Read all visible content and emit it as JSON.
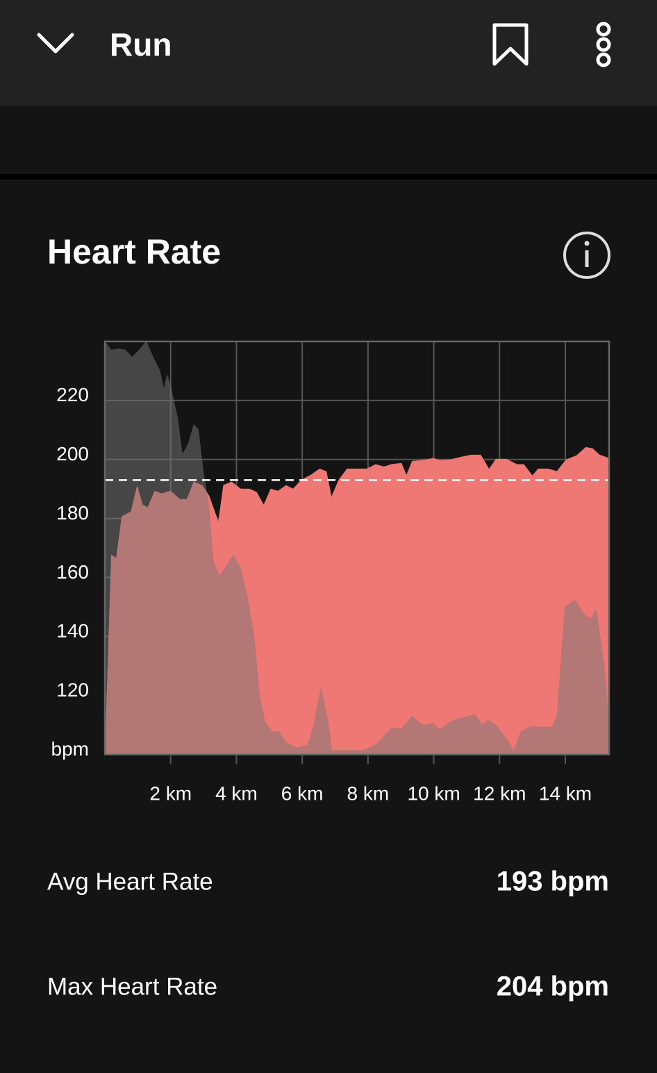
{
  "header": {
    "title": "Run"
  },
  "chart_data": {
    "type": "area",
    "title": "Heart Rate",
    "series": [
      {
        "color": "#ef7774",
        "x": [
          0,
          0.19,
          0.34,
          0.51,
          0.79,
          0.98,
          1.15,
          1.3,
          1.51,
          1.72,
          2.0,
          2.28,
          2.49,
          2.7,
          2.96,
          3.17,
          3.45,
          3.6,
          3.85,
          4.13,
          4.4,
          4.62,
          4.83,
          5.04,
          5.26,
          5.51,
          5.72,
          5.98,
          6.26,
          6.53,
          6.74,
          6.89,
          7.11,
          7.36,
          7.64,
          7.96,
          8.23,
          8.49,
          8.7,
          9.02,
          9.17,
          9.34,
          9.66,
          9.98,
          10.19,
          10.51,
          10.83,
          11.15,
          11.43,
          11.68,
          11.89,
          12.21,
          12.53,
          12.74,
          13.0,
          13.17,
          13.49,
          13.74,
          14.02,
          14.34,
          14.62,
          14.83,
          15.04,
          15.28,
          15.33
        ],
        "values": [
          101,
          167.8,
          166.6,
          180.7,
          182.4,
          191.3,
          184.7,
          183.8,
          189.4,
          188.5,
          189.4,
          186.6,
          186.6,
          192.5,
          191.3,
          187.8,
          179.1,
          191.3,
          192.5,
          190.1,
          190.1,
          188.9,
          184.7,
          190.1,
          189.4,
          191.3,
          190.1,
          193.2,
          194.8,
          196.9,
          196,
          187.5,
          193.2,
          196.9,
          196.9,
          196.9,
          198.4,
          197.6,
          198.4,
          198.8,
          194.8,
          199.5,
          199.8,
          200.5,
          199.8,
          200,
          200.9,
          201.6,
          201.6,
          196.9,
          200.2,
          200.2,
          198.4,
          198.4,
          194.6,
          196.9,
          196.9,
          196,
          200,
          201.4,
          204.2,
          203.8,
          201.6,
          200.7,
          200
        ]
      },
      {
        "color": "rgba(120,120,120,0.5)",
        "x": [
          0,
          0.19,
          0.4,
          0.62,
          0.83,
          1.04,
          1.26,
          1.47,
          1.68,
          1.79,
          1.89,
          2.0,
          2.11,
          2.21,
          2.36,
          2.53,
          2.7,
          2.85,
          3.0,
          3.17,
          3.3,
          3.49,
          3.7,
          3.91,
          4.13,
          4.34,
          4.55,
          4.7,
          4.87,
          5.09,
          5.3,
          5.51,
          5.83,
          6.15,
          6.32,
          6.57,
          6.79,
          6.91,
          7.43,
          7.85,
          8.28,
          8.7,
          9.02,
          9.34,
          9.66,
          9.98,
          10.19,
          10.51,
          10.83,
          11.26,
          11.47,
          11.68,
          11.94,
          12.21,
          12.43,
          12.64,
          12.96,
          13.28,
          13.6,
          13.74,
          13.98,
          14.3,
          14.55,
          14.77,
          14.94,
          15.19,
          15.33
        ],
        "values": [
          240.2,
          237.2,
          237.6,
          237.2,
          234.8,
          237.2,
          240.2,
          234.8,
          230.1,
          224.2,
          228.9,
          225.4,
          219.5,
          214.8,
          201.9,
          205.4,
          212,
          210.1,
          196,
          184.2,
          165.4,
          160.7,
          164.2,
          167.8,
          163.1,
          153.6,
          139.5,
          120.7,
          111.3,
          107.8,
          107.8,
          104.2,
          102.4,
          103.1,
          108.9,
          123.1,
          111.3,
          101.4,
          101.4,
          101.4,
          103.8,
          108.9,
          108.9,
          113.2,
          110.1,
          110.6,
          108.5,
          111.3,
          112.5,
          113.6,
          110.1,
          111.8,
          109.4,
          105.4,
          101.4,
          107.8,
          109.6,
          109.4,
          109.4,
          113.2,
          150.1,
          152.5,
          147.8,
          146.1,
          149.4,
          130.1,
          111.3
        ]
      }
    ],
    "xlim": [
      0,
      15.33
    ],
    "xticks": [
      {
        "value": 2,
        "label": "2 km"
      },
      {
        "value": 4,
        "label": "4 km"
      },
      {
        "value": 6,
        "label": "6 km"
      },
      {
        "value": 8,
        "label": "8 km"
      },
      {
        "value": 10,
        "label": "10 km"
      },
      {
        "value": 12,
        "label": "12 km"
      },
      {
        "value": 14,
        "label": "14 km"
      }
    ],
    "ylim": [
      100,
      240
    ],
    "yticks": [
      {
        "value": 100,
        "label": "bpm"
      },
      120,
      140,
      160,
      180,
      200,
      220
    ],
    "grid": true
  },
  "stats": [
    {
      "label": "Avg Heart Rate",
      "value": 193,
      "value_label": "193 bpm"
    },
    {
      "label": "Max Heart Rate",
      "value": 204,
      "value_label": "204 bpm"
    }
  ]
}
